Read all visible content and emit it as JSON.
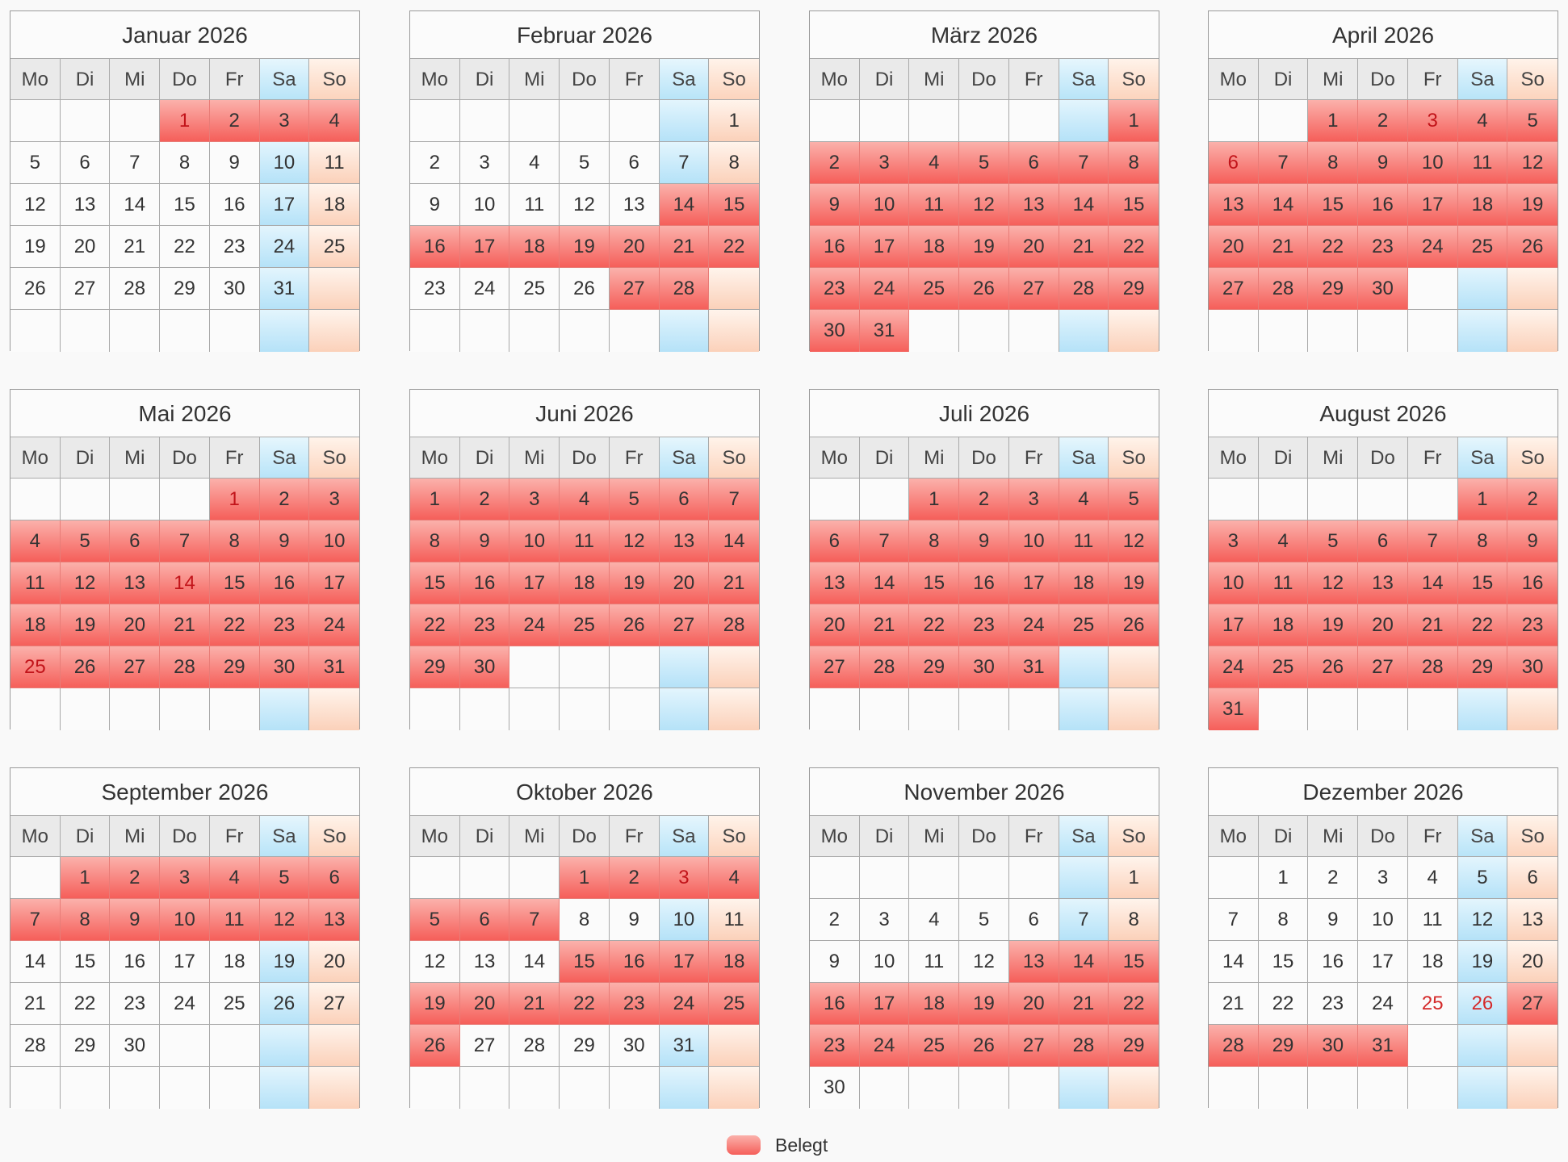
{
  "weekdays": [
    "Mo",
    "Di",
    "Mi",
    "Do",
    "Fr",
    "Sa",
    "So"
  ],
  "legend": {
    "label": "Belegt",
    "color": "#f87b75"
  },
  "colors": {
    "busy": "#f55f5a",
    "saturday": "#b8e4f8",
    "sunday": "#fcd4bd",
    "holiday_text": "#d42a2a"
  },
  "months": [
    {
      "title": "Januar 2026",
      "offset": 3,
      "days": 31,
      "busy": [
        1,
        2,
        3,
        4
      ],
      "holidays": [
        1
      ]
    },
    {
      "title": "Februar 2026",
      "offset": 6,
      "days": 28,
      "busy": [
        14,
        15,
        16,
        17,
        18,
        19,
        20,
        21,
        22,
        27,
        28
      ],
      "holidays": []
    },
    {
      "title": "März 2026",
      "offset": 6,
      "days": 31,
      "busy": [
        1,
        2,
        3,
        4,
        5,
        6,
        7,
        8,
        9,
        10,
        11,
        12,
        13,
        14,
        15,
        16,
        17,
        18,
        19,
        20,
        21,
        22,
        23,
        24,
        25,
        26,
        27,
        28,
        29,
        30,
        31
      ],
      "holidays": []
    },
    {
      "title": "April 2026",
      "offset": 2,
      "days": 30,
      "busy": [
        1,
        2,
        3,
        4,
        5,
        6,
        7,
        8,
        9,
        10,
        11,
        12,
        13,
        14,
        15,
        16,
        17,
        18,
        19,
        20,
        21,
        22,
        23,
        24,
        25,
        26,
        27,
        28,
        29,
        30
      ],
      "holidays": [
        3,
        6
      ]
    },
    {
      "title": "Mai 2026",
      "offset": 4,
      "days": 31,
      "busy": [
        1,
        2,
        3,
        4,
        5,
        6,
        7,
        8,
        9,
        10,
        11,
        12,
        13,
        14,
        15,
        16,
        17,
        18,
        19,
        20,
        21,
        22,
        23,
        24,
        25,
        26,
        27,
        28,
        29,
        30,
        31
      ],
      "holidays": [
        1,
        14,
        25
      ]
    },
    {
      "title": "Juni 2026",
      "offset": 0,
      "days": 30,
      "busy": [
        1,
        2,
        3,
        4,
        5,
        6,
        7,
        8,
        9,
        10,
        11,
        12,
        13,
        14,
        15,
        16,
        17,
        18,
        19,
        20,
        21,
        22,
        23,
        24,
        25,
        26,
        27,
        28,
        29,
        30
      ],
      "holidays": []
    },
    {
      "title": "Juli 2026",
      "offset": 2,
      "days": 31,
      "busy": [
        1,
        2,
        3,
        4,
        5,
        6,
        7,
        8,
        9,
        10,
        11,
        12,
        13,
        14,
        15,
        16,
        17,
        18,
        19,
        20,
        21,
        22,
        23,
        24,
        25,
        26,
        27,
        28,
        29,
        30,
        31
      ],
      "holidays": []
    },
    {
      "title": "August 2026",
      "offset": 5,
      "days": 31,
      "busy": [
        1,
        2,
        3,
        4,
        5,
        6,
        7,
        8,
        9,
        10,
        11,
        12,
        13,
        14,
        15,
        16,
        17,
        18,
        19,
        20,
        21,
        22,
        23,
        24,
        25,
        26,
        27,
        28,
        29,
        30,
        31
      ],
      "holidays": []
    },
    {
      "title": "September 2026",
      "offset": 1,
      "days": 30,
      "busy": [
        1,
        2,
        3,
        4,
        5,
        6,
        7,
        8,
        9,
        10,
        11,
        12,
        13
      ],
      "holidays": []
    },
    {
      "title": "Oktober 2026",
      "offset": 3,
      "days": 31,
      "busy": [
        1,
        2,
        3,
        4,
        5,
        6,
        7,
        15,
        16,
        17,
        18,
        19,
        20,
        21,
        22,
        23,
        24,
        25,
        26
      ],
      "holidays": [
        3
      ]
    },
    {
      "title": "November 2026",
      "offset": 6,
      "days": 30,
      "busy": [
        13,
        14,
        15,
        16,
        17,
        18,
        19,
        20,
        21,
        22,
        23,
        24,
        25,
        26,
        27,
        28,
        29
      ],
      "holidays": []
    },
    {
      "title": "Dezember 2026",
      "offset": 1,
      "days": 31,
      "busy": [
        27,
        28,
        29,
        30,
        31
      ],
      "holidays": [
        25,
        26
      ]
    }
  ]
}
